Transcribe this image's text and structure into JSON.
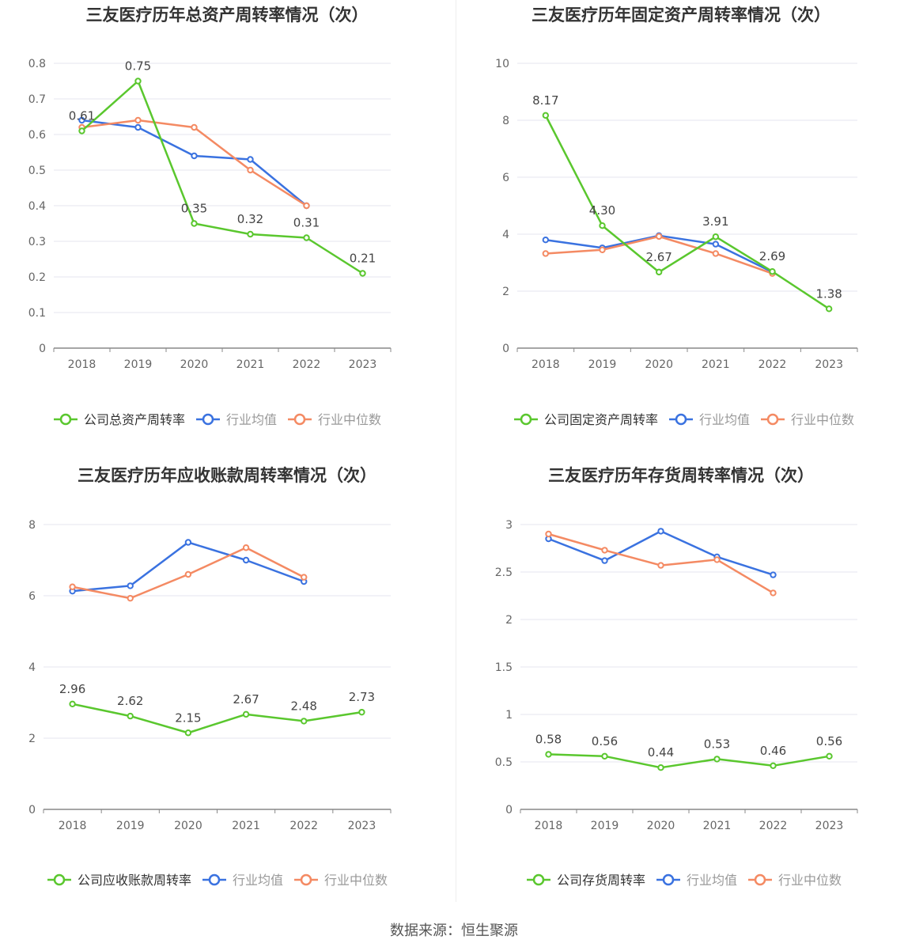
{
  "footer": {
    "source_text": "数据来源：恒生聚源"
  },
  "colors": {
    "company": "#5ac72e",
    "industry_avg": "#3a72e0",
    "industry_median": "#f48a63",
    "axis": "#888888",
    "grid": "#e6e6ef",
    "text": "#666666",
    "title": "#333333"
  },
  "chart_data": [
    {
      "type": "line",
      "title": "三友医疗历年总资产周转率情况（次）",
      "x": [
        "2018",
        "2019",
        "2020",
        "2021",
        "2022",
        "2023"
      ],
      "ylim": [
        0,
        0.8
      ],
      "yticks": [
        "0",
        "0.1",
        "0.2",
        "0.3",
        "0.4",
        "0.5",
        "0.6",
        "0.7",
        "0.8"
      ],
      "legend_position": "bottom",
      "series": [
        {
          "name": "公司总资产周转率",
          "values": [
            0.61,
            0.75,
            0.35,
            0.32,
            0.31,
            0.21
          ],
          "labels": [
            "0.61",
            "0.75",
            "0.35",
            "0.32",
            "0.31",
            "0.21"
          ]
        },
        {
          "name": "行业均值",
          "values": [
            0.64,
            0.62,
            0.54,
            0.53,
            0.4,
            null
          ]
        },
        {
          "name": "行业中位数",
          "values": [
            0.62,
            0.64,
            0.62,
            0.5,
            0.4,
            null
          ]
        }
      ]
    },
    {
      "type": "line",
      "title": "三友医疗历年固定资产周转率情况（次）",
      "x": [
        "2018",
        "2019",
        "2020",
        "2021",
        "2022",
        "2023"
      ],
      "ylim": [
        0,
        10
      ],
      "yticks": [
        "0",
        "2",
        "4",
        "6",
        "8",
        "10"
      ],
      "legend_position": "bottom",
      "series": [
        {
          "name": "公司固定资产周转率",
          "values": [
            8.17,
            4.3,
            2.67,
            3.91,
            2.69,
            1.38
          ],
          "labels": [
            "8.17",
            "4.30",
            "2.67",
            "3.91",
            "2.69",
            "1.38"
          ]
        },
        {
          "name": "行业均值",
          "values": [
            3.8,
            3.52,
            3.95,
            3.65,
            2.67,
            null
          ]
        },
        {
          "name": "行业中位数",
          "values": [
            3.32,
            3.45,
            3.92,
            3.32,
            2.62,
            null
          ]
        }
      ]
    },
    {
      "type": "line",
      "title": "三友医疗历年应收账款周转率情况（次）",
      "x": [
        "2018",
        "2019",
        "2020",
        "2021",
        "2022",
        "2023"
      ],
      "ylim": [
        0,
        8
      ],
      "yticks": [
        "0",
        "2",
        "4",
        "6",
        "8"
      ],
      "legend_position": "bottom",
      "series": [
        {
          "name": "公司应收账款周转率",
          "values": [
            2.96,
            2.62,
            2.15,
            2.67,
            2.48,
            2.73
          ],
          "labels": [
            "2.96",
            "2.62",
            "2.15",
            "2.67",
            "2.48",
            "2.73"
          ]
        },
        {
          "name": "行业均值",
          "values": [
            6.13,
            6.28,
            7.5,
            7.0,
            6.4,
            null
          ]
        },
        {
          "name": "行业中位数",
          "values": [
            6.25,
            5.93,
            6.6,
            7.35,
            6.52,
            null
          ]
        }
      ]
    },
    {
      "type": "line",
      "title": "三友医疗历年存货周转率情况（次）",
      "x": [
        "2018",
        "2019",
        "2020",
        "2021",
        "2022",
        "2023"
      ],
      "ylim": [
        0,
        3
      ],
      "yticks": [
        "0",
        "0.5",
        "1",
        "1.5",
        "2",
        "2.5",
        "3"
      ],
      "legend_position": "bottom",
      "series": [
        {
          "name": "公司存货周转率",
          "values": [
            0.58,
            0.56,
            0.44,
            0.53,
            0.46,
            0.56
          ],
          "labels": [
            "0.58",
            "0.56",
            "0.44",
            "0.53",
            "0.46",
            "0.56"
          ]
        },
        {
          "name": "行业均值",
          "values": [
            2.85,
            2.62,
            2.93,
            2.66,
            2.47,
            null
          ]
        },
        {
          "name": "行业中位数",
          "values": [
            2.9,
            2.73,
            2.57,
            2.63,
            2.28,
            null
          ]
        }
      ]
    }
  ]
}
